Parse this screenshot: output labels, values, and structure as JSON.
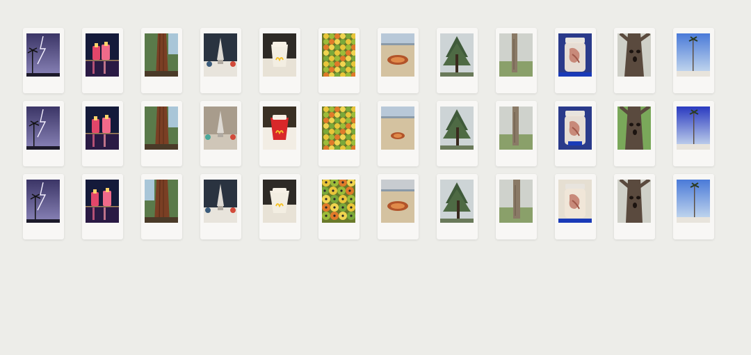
{
  "gallery": {
    "rows": [
      {
        "tiles": [
          {
            "subject": "lightning-palm-tree"
          },
          {
            "subject": "lit-towers-night"
          },
          {
            "subject": "sequoia-trunk"
          },
          {
            "subject": "rocket-figurine"
          },
          {
            "subject": "mcdonalds-fries-cup"
          },
          {
            "subject": "mango-pile"
          },
          {
            "subject": "sand-crater-beach"
          },
          {
            "subject": "pine-tree-sky"
          },
          {
            "subject": "tree-trunk-park"
          },
          {
            "subject": "specimen-jar"
          },
          {
            "subject": "tree-face"
          },
          {
            "subject": "palm-tree-blue-sky"
          }
        ]
      },
      {
        "tiles": [
          {
            "subject": "lightning-palm-tree"
          },
          {
            "subject": "lit-towers-night"
          },
          {
            "subject": "sequoia-trunk"
          },
          {
            "subject": "rocket-figurine"
          },
          {
            "subject": "mcdonalds-fries-cup"
          },
          {
            "subject": "mango-pile"
          },
          {
            "subject": "sand-crater-beach"
          },
          {
            "subject": "pine-tree-sky"
          },
          {
            "subject": "tree-trunk-park"
          },
          {
            "subject": "specimen-jar"
          },
          {
            "subject": "tree-face"
          },
          {
            "subject": "palm-tree-blue-sky"
          }
        ]
      },
      {
        "tiles": [
          {
            "subject": "lightning-palm-tree"
          },
          {
            "subject": "lit-towers-night"
          },
          {
            "subject": "sequoia-trunk"
          },
          {
            "subject": "rocket-figurine"
          },
          {
            "subject": "mcdonalds-fries-cup"
          },
          {
            "subject": "mango-pile"
          },
          {
            "subject": "sand-crater-beach"
          },
          {
            "subject": "pine-tree-sky"
          },
          {
            "subject": "tree-trunk-park"
          },
          {
            "subject": "specimen-jar"
          },
          {
            "subject": "tree-face"
          },
          {
            "subject": "palm-tree-blue-sky"
          }
        ]
      }
    ]
  },
  "colors": {
    "background": "#edede9",
    "card": "#f8f7f5"
  }
}
